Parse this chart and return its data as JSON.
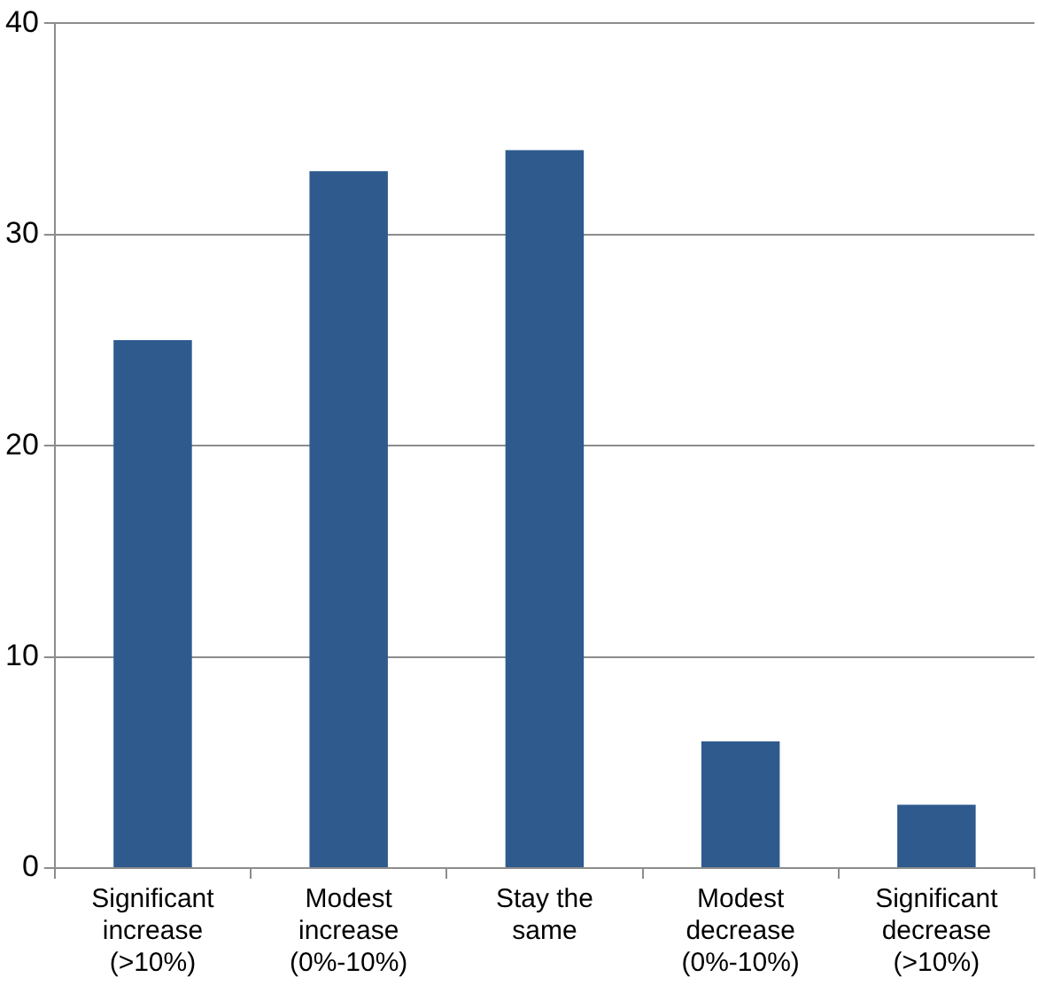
{
  "chart_data": {
    "type": "bar",
    "categories": [
      "Significant\nincrease\n(>10%)",
      "Modest\nincrease\n(0%-10%)",
      "Stay the\nsame",
      "Modest\ndecrease\n(0%-10%)",
      "Significant\ndecrease\n(>10%)"
    ],
    "values": [
      25,
      33,
      34,
      6,
      3
    ],
    "color": "#2e5a8e",
    "ylim": [
      0,
      40
    ],
    "yticks": [
      0,
      10,
      20,
      30,
      40
    ],
    "grid": "y",
    "legend": false
  }
}
